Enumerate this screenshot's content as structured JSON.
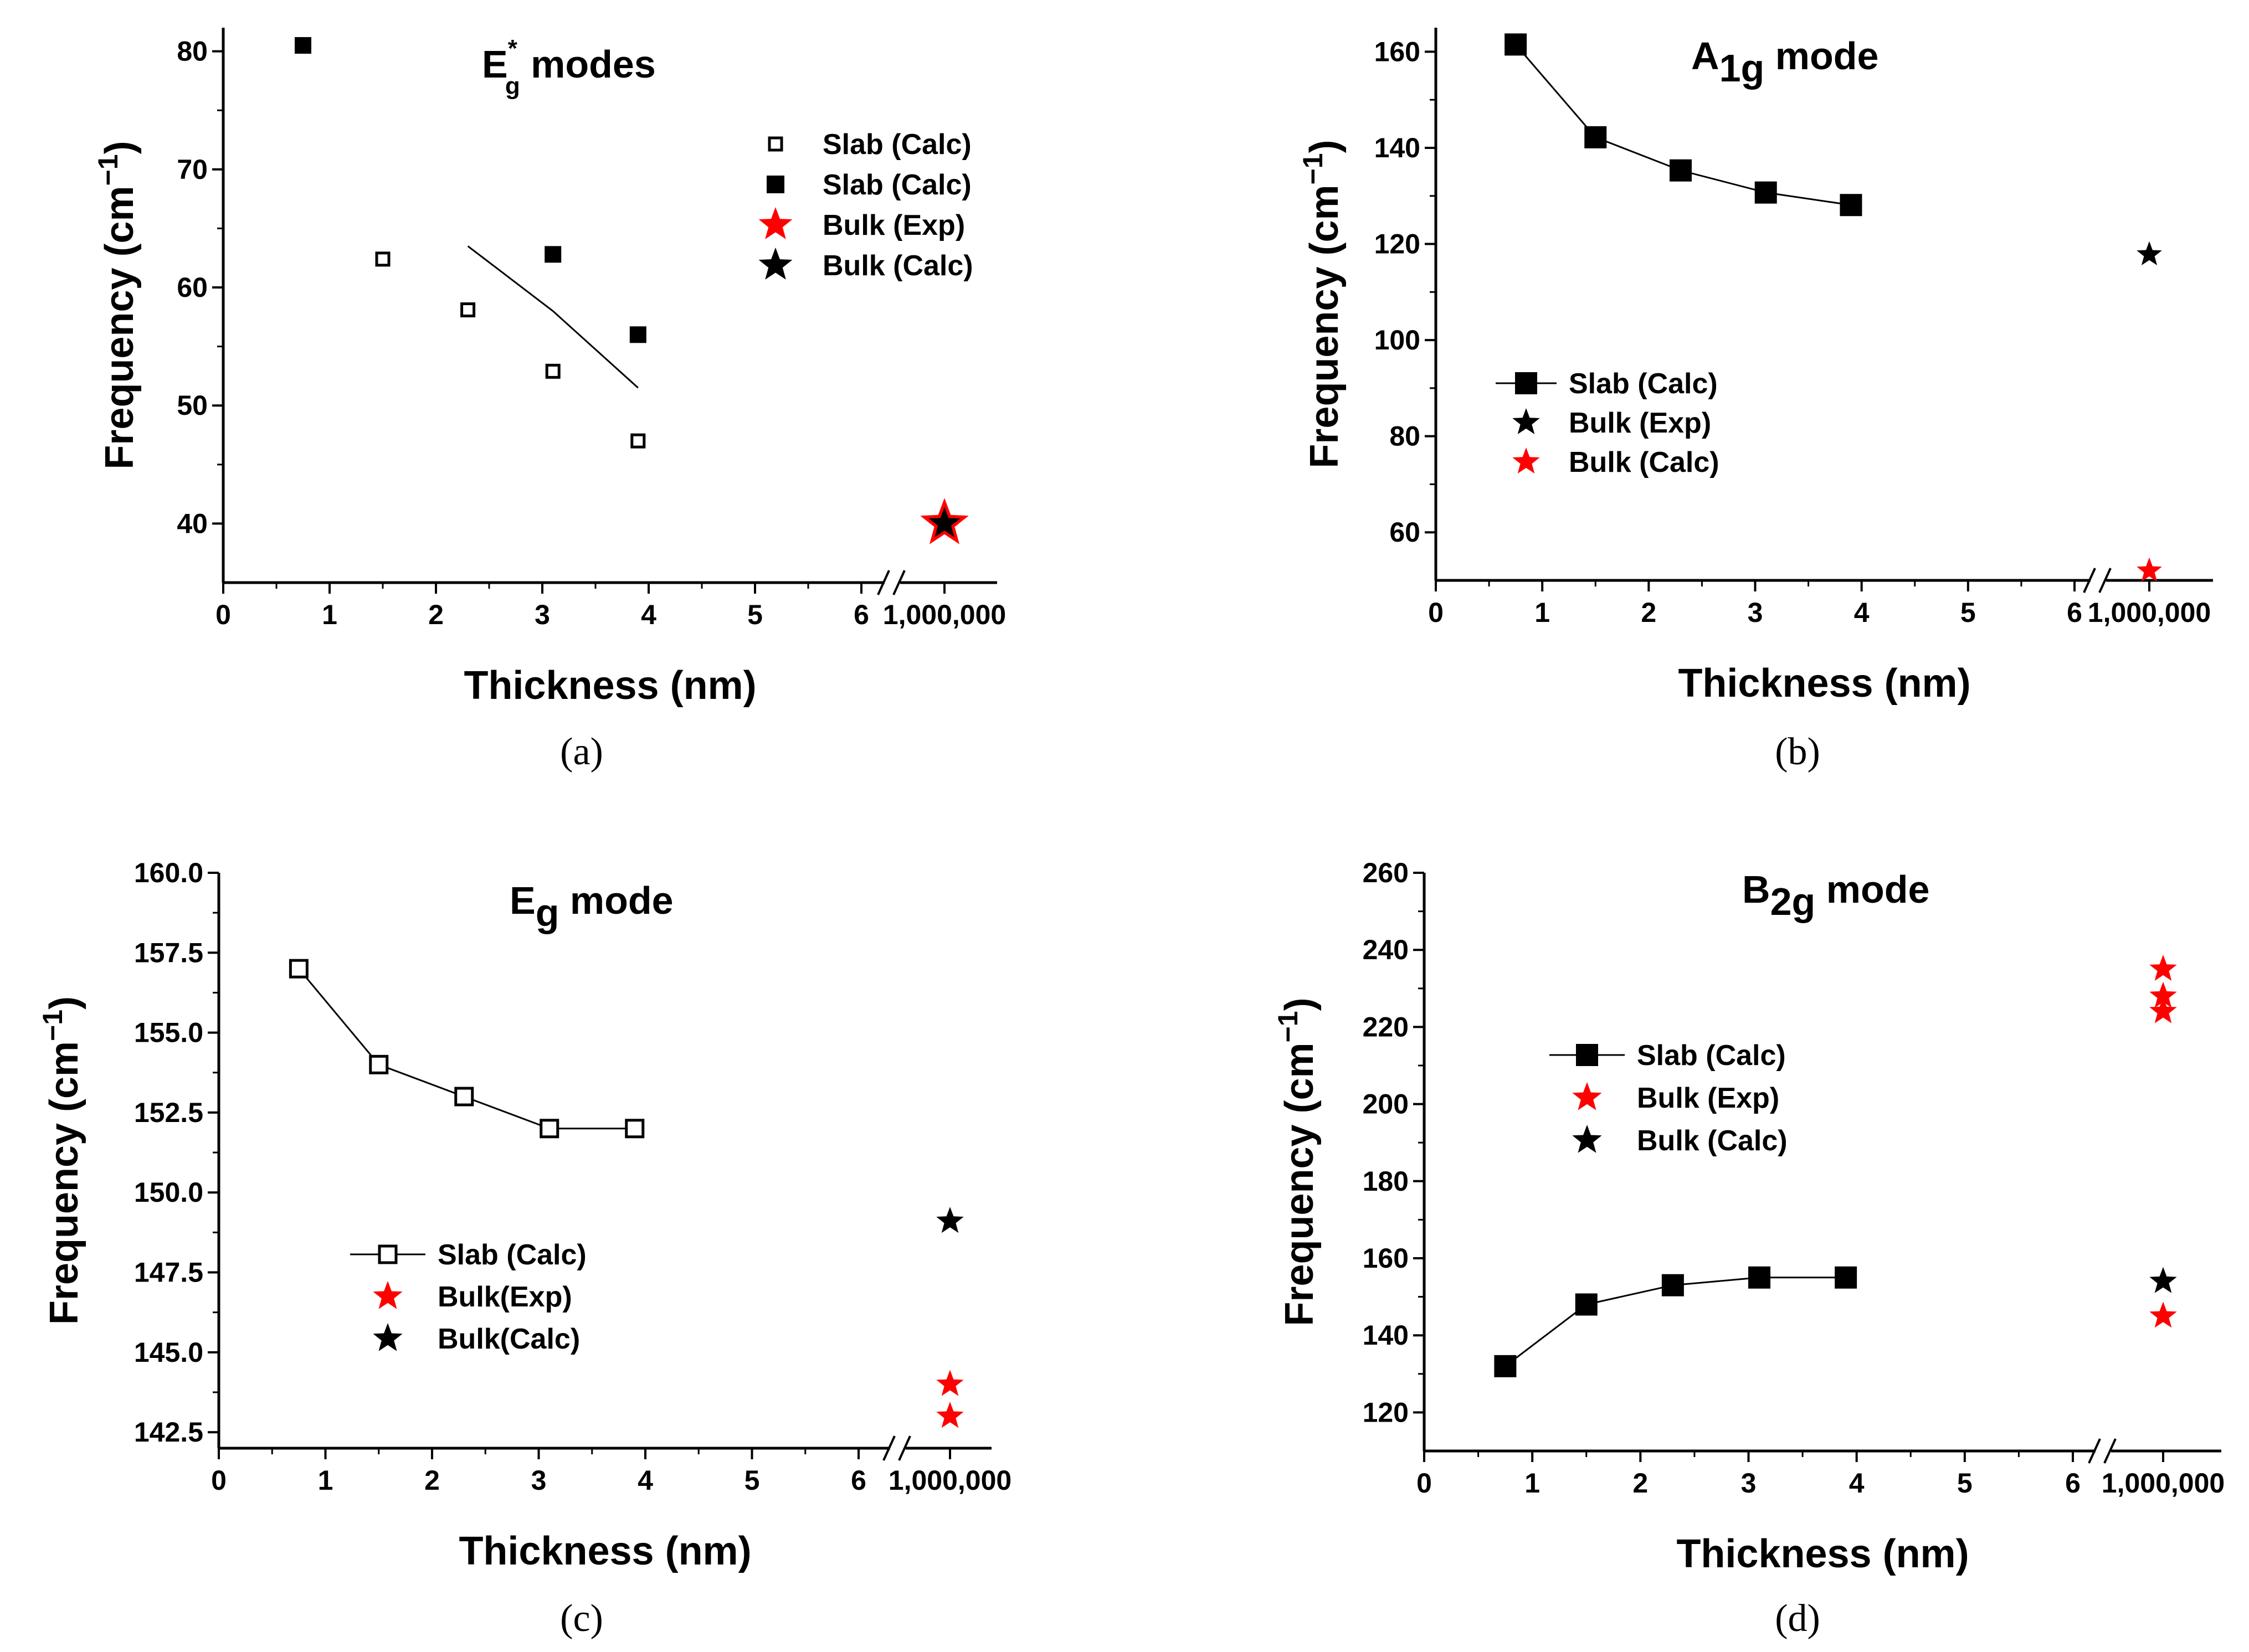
{
  "chart_data": [
    {
      "id": "a",
      "type": "scatter",
      "title": {
        "main": "E",
        "sub": "g",
        "sup": "*",
        "rest": " modes"
      },
      "xlabel": "Thickness (nm)",
      "ylabel": "Frequency (cm",
      "ylabel_sup": "−1",
      "ylabel_end": ")",
      "caption": "(a)",
      "xticks": [
        "0",
        "1",
        "2",
        "3",
        "4",
        "5",
        "6"
      ],
      "break_tick": "1,000,000",
      "ylim": [
        35,
        82
      ],
      "yticks": [
        40,
        50,
        60,
        70,
        80
      ],
      "yticklabels": [
        "40",
        "50",
        "60",
        "70",
        "80"
      ],
      "series": [
        {
          "name": "Slab (Calc)",
          "marker": "square-open",
          "color": "#000000",
          "line": false,
          "x": [
            1.5,
            2.3,
            3.1,
            3.9
          ],
          "y": [
            62.4,
            58.1,
            52.9,
            47.0
          ]
        },
        {
          "name": "Slab (Calc)",
          "marker": "square",
          "color": "#000000",
          "line": false,
          "x": [
            0.75,
            3.1,
            3.9
          ],
          "y": [
            80.5,
            62.8,
            56.0
          ]
        },
        {
          "name": "Bulk (Exp)",
          "marker": "star",
          "color": "#ff0000",
          "line": false,
          "x": [
            "1,000,000"
          ],
          "y": [
            40.0
          ]
        },
        {
          "name": "Bulk (Calc)",
          "marker": "star",
          "color": "#000000",
          "line": false,
          "x": [
            "1,000,000"
          ],
          "y": [
            40.0
          ]
        }
      ],
      "trend_line": {
        "x": [
          2.3,
          3.1,
          3.9
        ],
        "y": [
          63.5,
          58.0,
          51.5
        ]
      }
    },
    {
      "id": "b",
      "type": "line",
      "title": {
        "main": "A",
        "sub": "1g",
        "rest": " mode"
      },
      "xlabel": "Thickness (nm)",
      "ylabel": "Frequency (cm",
      "ylabel_sup": "−1",
      "ylabel_end": ")",
      "caption": "(b)",
      "xticks": [
        "0",
        "1",
        "2",
        "3",
        "4",
        "5",
        "6"
      ],
      "break_tick": "1,000,000",
      "ylim": [
        50,
        165
      ],
      "yticks": [
        60,
        80,
        100,
        120,
        140,
        160
      ],
      "yticklabels": [
        "60",
        "80",
        "100",
        "120",
        "140",
        "160"
      ],
      "series": [
        {
          "name": "Slab (Calc)",
          "marker": "square",
          "color": "#000000",
          "line": true,
          "x": [
            0.75,
            1.5,
            2.3,
            3.1,
            3.9
          ],
          "y": [
            161.5,
            142.2,
            135.3,
            130.7,
            128.1
          ]
        },
        {
          "name": "Bulk (Exp)",
          "marker": "star",
          "color": "#000000",
          "line": false,
          "x": [
            "1,000,000"
          ],
          "y": [
            117.8
          ]
        },
        {
          "name": "Bulk (Calc)",
          "marker": "star",
          "color": "#ff0000",
          "line": false,
          "x": [
            "1,000,000"
          ],
          "y": [
            52.0
          ]
        }
      ]
    },
    {
      "id": "c",
      "type": "line",
      "title": {
        "main": "E",
        "sub": "g",
        "rest": " mode"
      },
      "xlabel": "Thickness (nm)",
      "ylabel": "Frequency (cm",
      "ylabel_sup": "−1",
      "ylabel_end": ")",
      "caption": "(c)",
      "xticks": [
        "0",
        "1",
        "2",
        "3",
        "4",
        "5",
        "6"
      ],
      "break_tick": "1,000,000",
      "ylim": [
        142.0,
        160.0
      ],
      "yticks": [
        142.5,
        145.0,
        147.5,
        150.0,
        152.5,
        155.0,
        157.5,
        160.0
      ],
      "yticklabels": [
        "142.5",
        "145.0",
        "147.5",
        "150.0",
        "152.5",
        "155.0",
        "157.5",
        "160.0"
      ],
      "series": [
        {
          "name": "Slab (Calc)",
          "marker": "square-open",
          "color": "#000000",
          "line": true,
          "x": [
            0.75,
            1.5,
            2.3,
            3.1,
            3.9
          ],
          "y": [
            157.0,
            154.0,
            153.0,
            152.0,
            152.0
          ]
        },
        {
          "name": "Bulk(Exp)",
          "marker": "star",
          "color": "#ff0000",
          "line": false,
          "x": [
            "1,000,000",
            "1,000,000"
          ],
          "y": [
            144.0,
            143.0
          ]
        },
        {
          "name": "Bulk(Calc)",
          "marker": "star",
          "color": "#000000",
          "line": false,
          "x": [
            "1,000,000"
          ],
          "y": [
            149.1
          ]
        }
      ]
    },
    {
      "id": "d",
      "type": "line",
      "title": {
        "main": "B",
        "sub": "2g",
        "rest": " mode"
      },
      "xlabel": "Thickness (nm)",
      "ylabel": "Frequency (cm",
      "ylabel_sup": "−1",
      "ylabel_end": ")",
      "caption": "(d)",
      "xticks": [
        "0",
        "1",
        "2",
        "3",
        "4",
        "5",
        "6"
      ],
      "break_tick": "1,000,000",
      "ylim": [
        110,
        260
      ],
      "yticks": [
        120,
        140,
        160,
        180,
        200,
        220,
        240,
        260
      ],
      "yticklabels": [
        "120",
        "140",
        "160",
        "180",
        "200",
        "220",
        "240",
        "260"
      ],
      "series": [
        {
          "name": "Slab (Calc)",
          "marker": "square",
          "color": "#000000",
          "line": true,
          "x": [
            0.75,
            1.5,
            2.3,
            3.1,
            3.9
          ],
          "y": [
            132.0,
            148.0,
            153.0,
            155.0,
            155.0
          ]
        },
        {
          "name": "Bulk (Exp)",
          "marker": "star",
          "color": "#ff0000",
          "line": false,
          "x": [
            "1,000,000",
            "1,000,000",
            "1,000,000",
            "1,000,000"
          ],
          "y": [
            235.0,
            228.0,
            224.0,
            145.0
          ]
        },
        {
          "name": "Bulk (Calc)",
          "marker": "star",
          "color": "#000000",
          "line": false,
          "x": [
            "1,000,000"
          ],
          "y": [
            154.0
          ]
        }
      ]
    }
  ]
}
